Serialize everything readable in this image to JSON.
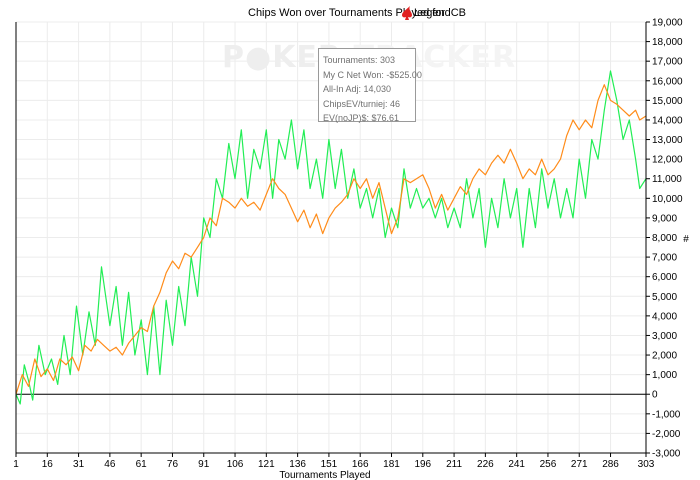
{
  "chart_data": {
    "type": "line",
    "title": "Chips Won over Tournaments Played for",
    "title_user": "LegendCB",
    "xlabel": "Tournaments Played",
    "ylabel": "#",
    "xlim": [
      1,
      303
    ],
    "ylim": [
      -3000,
      19000
    ],
    "x_ticks": [
      1,
      16,
      31,
      46,
      61,
      76,
      91,
      106,
      121,
      136,
      151,
      166,
      181,
      196,
      211,
      226,
      241,
      256,
      271,
      286,
      303
    ],
    "y_ticks": [
      -3000,
      -2000,
      -1000,
      0,
      1000,
      2000,
      3000,
      4000,
      5000,
      6000,
      7000,
      8000,
      9000,
      10000,
      11000,
      12000,
      13000,
      14000,
      15000,
      16000,
      17000,
      18000,
      19000
    ],
    "grid": true,
    "series": [
      {
        "color": "#22ee55",
        "points": [
          [
            1,
            0
          ],
          [
            3,
            -500
          ],
          [
            5,
            1500
          ],
          [
            7,
            700
          ],
          [
            9,
            -300
          ],
          [
            12,
            2500
          ],
          [
            15,
            1000
          ],
          [
            18,
            1800
          ],
          [
            21,
            500
          ],
          [
            24,
            3000
          ],
          [
            27,
            1000
          ],
          [
            30,
            4500
          ],
          [
            33,
            2000
          ],
          [
            36,
            4200
          ],
          [
            39,
            2500
          ],
          [
            42,
            6500
          ],
          [
            46,
            3500
          ],
          [
            49,
            5500
          ],
          [
            52,
            2500
          ],
          [
            55,
            5200
          ],
          [
            58,
            2000
          ],
          [
            61,
            3800
          ],
          [
            64,
            1000
          ],
          [
            67,
            4500
          ],
          [
            70,
            1000
          ],
          [
            73,
            4800
          ],
          [
            76,
            2500
          ],
          [
            79,
            5500
          ],
          [
            82,
            3500
          ],
          [
            85,
            7000
          ],
          [
            88,
            5000
          ],
          [
            91,
            9000
          ],
          [
            94,
            8000
          ],
          [
            97,
            11000
          ],
          [
            100,
            10000
          ],
          [
            103,
            12800
          ],
          [
            106,
            11000
          ],
          [
            109,
            13500
          ],
          [
            112,
            10000
          ],
          [
            115,
            12500
          ],
          [
            118,
            11500
          ],
          [
            121,
            13500
          ],
          [
            124,
            10000
          ],
          [
            127,
            13000
          ],
          [
            130,
            12000
          ],
          [
            133,
            14000
          ],
          [
            136,
            11500
          ],
          [
            139,
            13500
          ],
          [
            142,
            10500
          ],
          [
            145,
            12000
          ],
          [
            148,
            10000
          ],
          [
            151,
            13000
          ],
          [
            154,
            10500
          ],
          [
            157,
            12500
          ],
          [
            160,
            10000
          ],
          [
            163,
            11500
          ],
          [
            166,
            9500
          ],
          [
            169,
            10500
          ],
          [
            172,
            9000
          ],
          [
            175,
            10500
          ],
          [
            178,
            8000
          ],
          [
            181,
            9500
          ],
          [
            184,
            8500
          ],
          [
            187,
            11500
          ],
          [
            190,
            9500
          ],
          [
            193,
            10500
          ],
          [
            196,
            9500
          ],
          [
            199,
            10000
          ],
          [
            202,
            9000
          ],
          [
            205,
            10000
          ],
          [
            208,
            8500
          ],
          [
            211,
            9500
          ],
          [
            214,
            8500
          ],
          [
            217,
            11000
          ],
          [
            220,
            9000
          ],
          [
            223,
            10500
          ],
          [
            226,
            7500
          ],
          [
            229,
            10000
          ],
          [
            232,
            8500
          ],
          [
            235,
            11000
          ],
          [
            238,
            9000
          ],
          [
            241,
            10500
          ],
          [
            244,
            7500
          ],
          [
            247,
            10500
          ],
          [
            250,
            8500
          ],
          [
            253,
            11500
          ],
          [
            256,
            9500
          ],
          [
            259,
            11000
          ],
          [
            262,
            9000
          ],
          [
            265,
            10500
          ],
          [
            268,
            9000
          ],
          [
            271,
            12000
          ],
          [
            274,
            10000
          ],
          [
            277,
            13000
          ],
          [
            280,
            12000
          ],
          [
            283,
            14500
          ],
          [
            286,
            16500
          ],
          [
            289,
            15000
          ],
          [
            292,
            13000
          ],
          [
            295,
            14000
          ],
          [
            298,
            12000
          ],
          [
            300,
            10500
          ],
          [
            303,
            11000
          ]
        ]
      },
      {
        "color": "#ff8c1a",
        "points": [
          [
            1,
            0
          ],
          [
            4,
            1000
          ],
          [
            7,
            400
          ],
          [
            10,
            1800
          ],
          [
            13,
            900
          ],
          [
            16,
            1300
          ],
          [
            19,
            700
          ],
          [
            22,
            1800
          ],
          [
            25,
            1500
          ],
          [
            28,
            1900
          ],
          [
            31,
            1200
          ],
          [
            34,
            2500
          ],
          [
            37,
            2200
          ],
          [
            40,
            2800
          ],
          [
            43,
            2500
          ],
          [
            46,
            2200
          ],
          [
            49,
            2400
          ],
          [
            52,
            2000
          ],
          [
            55,
            2600
          ],
          [
            58,
            3000
          ],
          [
            61,
            3400
          ],
          [
            64,
            3200
          ],
          [
            67,
            4500
          ],
          [
            70,
            5200
          ],
          [
            73,
            6200
          ],
          [
            76,
            6800
          ],
          [
            79,
            6400
          ],
          [
            82,
            7200
          ],
          [
            85,
            7000
          ],
          [
            88,
            7500
          ],
          [
            91,
            8000
          ],
          [
            94,
            9000
          ],
          [
            97,
            8600
          ],
          [
            100,
            10000
          ],
          [
            103,
            9800
          ],
          [
            106,
            9500
          ],
          [
            109,
            10000
          ],
          [
            112,
            9600
          ],
          [
            115,
            9800
          ],
          [
            118,
            9400
          ],
          [
            121,
            10200
          ],
          [
            124,
            11000
          ],
          [
            127,
            10500
          ],
          [
            130,
            10200
          ],
          [
            133,
            9500
          ],
          [
            136,
            8800
          ],
          [
            139,
            9400
          ],
          [
            142,
            8500
          ],
          [
            145,
            9200
          ],
          [
            148,
            8200
          ],
          [
            151,
            9000
          ],
          [
            154,
            9500
          ],
          [
            157,
            9800
          ],
          [
            160,
            10200
          ],
          [
            163,
            11000
          ],
          [
            166,
            10500
          ],
          [
            169,
            11000
          ],
          [
            172,
            10000
          ],
          [
            175,
            10800
          ],
          [
            178,
            9500
          ],
          [
            181,
            8200
          ],
          [
            184,
            9000
          ],
          [
            187,
            11000
          ],
          [
            190,
            10800
          ],
          [
            193,
            11000
          ],
          [
            196,
            11200
          ],
          [
            199,
            10500
          ],
          [
            202,
            9500
          ],
          [
            205,
            10200
          ],
          [
            208,
            9400
          ],
          [
            211,
            10000
          ],
          [
            214,
            10600
          ],
          [
            217,
            10200
          ],
          [
            220,
            11000
          ],
          [
            223,
            11500
          ],
          [
            226,
            11200
          ],
          [
            229,
            11800
          ],
          [
            232,
            12200
          ],
          [
            235,
            11800
          ],
          [
            238,
            12500
          ],
          [
            241,
            11800
          ],
          [
            244,
            11000
          ],
          [
            247,
            11500
          ],
          [
            250,
            11200
          ],
          [
            253,
            12000
          ],
          [
            256,
            11200
          ],
          [
            259,
            11500
          ],
          [
            262,
            12000
          ],
          [
            265,
            13200
          ],
          [
            268,
            14000
          ],
          [
            271,
            13500
          ],
          [
            274,
            14000
          ],
          [
            277,
            13600
          ],
          [
            280,
            15000
          ],
          [
            283,
            15800
          ],
          [
            286,
            15000
          ],
          [
            289,
            14800
          ],
          [
            292,
            14500
          ],
          [
            295,
            14200
          ],
          [
            298,
            14500
          ],
          [
            300,
            14000
          ],
          [
            303,
            14200
          ]
        ]
      }
    ]
  },
  "tooltip": {
    "line1": "Tournaments: 303",
    "line2": "My C Net Won: -$525.00",
    "line3": "All-In Adj: 14,030",
    "line4": "ChipsEV/turniej: 46",
    "line5": "EV(noJP)$: $76.61"
  },
  "watermark": {
    "left": "P",
    "right": "KER",
    "faded": "TRACKER"
  }
}
